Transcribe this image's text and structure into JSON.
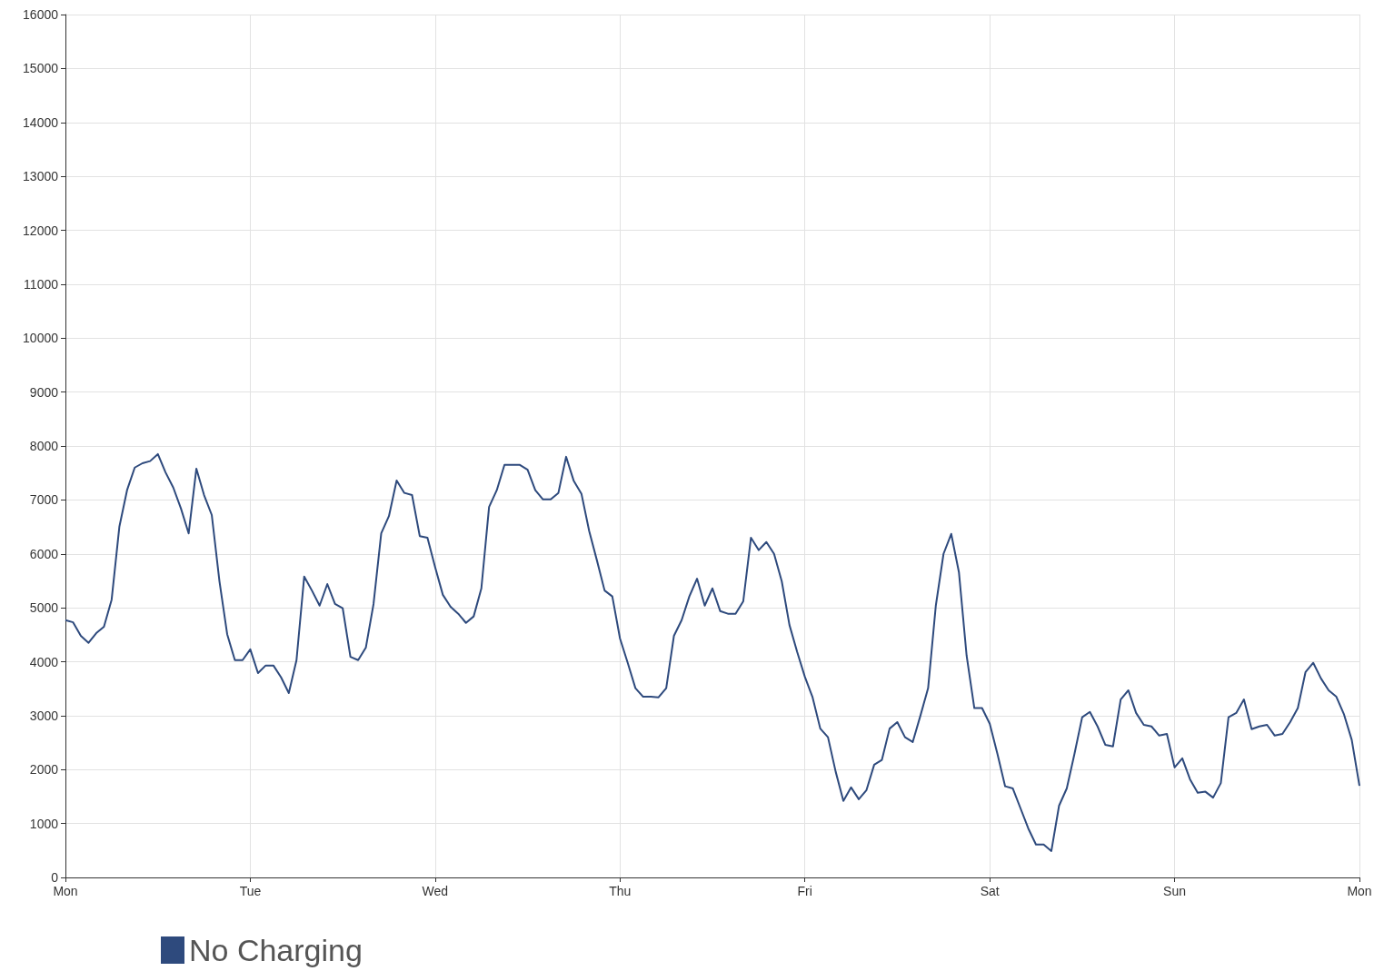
{
  "chart_data": {
    "type": "line",
    "categories": [
      "Mon",
      null,
      null,
      null,
      null,
      null,
      null,
      null,
      null,
      null,
      null,
      null,
      null,
      null,
      null,
      null,
      null,
      null,
      null,
      null,
      null,
      null,
      null,
      null,
      "Tue",
      null,
      null,
      null,
      null,
      null,
      null,
      null,
      null,
      null,
      null,
      null,
      null,
      null,
      null,
      null,
      null,
      null,
      null,
      null,
      null,
      null,
      null,
      null,
      "Wed",
      null,
      null,
      null,
      null,
      null,
      null,
      null,
      null,
      null,
      null,
      null,
      null,
      null,
      null,
      null,
      null,
      null,
      null,
      null,
      null,
      null,
      null,
      null,
      "Thu",
      null,
      null,
      null,
      null,
      null,
      null,
      null,
      null,
      null,
      null,
      null,
      null,
      null,
      null,
      null,
      null,
      null,
      null,
      null,
      null,
      null,
      null,
      null,
      "Fri",
      null,
      null,
      null,
      null,
      null,
      null,
      null,
      null,
      null,
      null,
      null,
      null,
      null,
      null,
      null,
      null,
      null,
      null,
      null,
      null,
      null,
      null,
      null,
      "Sat",
      null,
      null,
      null,
      null,
      null,
      null,
      null,
      null,
      null,
      null,
      null,
      null,
      null,
      null,
      null,
      null,
      null,
      null,
      null,
      null,
      null,
      null,
      null,
      "Sun",
      null,
      null,
      null,
      null,
      null,
      null,
      null,
      null,
      null,
      null,
      null,
      null,
      null,
      null,
      null,
      null,
      null,
      null,
      null,
      null,
      null,
      null,
      null,
      "Mon"
    ],
    "series": [
      {
        "name": "No Charging",
        "color": "#2e4a7d",
        "values": [
          4770,
          4730,
          4480,
          4350,
          4530,
          4650,
          5150,
          6500,
          7180,
          7600,
          7680,
          7720,
          7850,
          7510,
          7230,
          6840,
          6380,
          7580,
          7090,
          6720,
          5490,
          4510,
          4030,
          4030,
          4230,
          3790,
          3930,
          3930,
          3710,
          3420,
          4030,
          5580,
          5320,
          5040,
          5440,
          5070,
          4990,
          4090,
          4030,
          4260,
          5070,
          6380,
          6700,
          7360,
          7130,
          7090,
          6330,
          6300,
          5750,
          5240,
          5020,
          4890,
          4720,
          4840,
          5360,
          6870,
          7180,
          7650,
          7650,
          7650,
          7560,
          7180,
          7010,
          7010,
          7130,
          7800,
          7350,
          7110,
          6420,
          5880,
          5320,
          5210,
          4430,
          3980,
          3510,
          3350,
          3350,
          3340,
          3510,
          4480,
          4770,
          5210,
          5540,
          5040,
          5360,
          4940,
          4890,
          4890,
          5120,
          6300,
          6070,
          6220,
          6000,
          5490,
          4680,
          4180,
          3720,
          3340,
          2760,
          2600,
          1960,
          1420,
          1670,
          1450,
          1620,
          2090,
          2180,
          2760,
          2880,
          2600,
          2510,
          3000,
          3510,
          5040,
          6000,
          6370,
          5660,
          4110,
          3140,
          3140,
          2850,
          2290,
          1690,
          1650,
          1280,
          910,
          610,
          610,
          490,
          1330,
          1650,
          2290,
          2970,
          3070,
          2800,
          2460,
          2430,
          3300,
          3470,
          3050,
          2830,
          2800,
          2630,
          2660,
          2040,
          2210,
          1820,
          1570,
          1590,
          1480,
          1750,
          2970,
          3050,
          3300,
          2750,
          2800,
          2830,
          2630,
          2660,
          2880,
          3140,
          3810,
          3980,
          3690,
          3470,
          3350,
          3020,
          2550,
          1700
        ]
      }
    ],
    "ylim": [
      0,
      16000
    ],
    "yticks": [
      0,
      1000,
      2000,
      3000,
      4000,
      5000,
      6000,
      7000,
      8000,
      9000,
      10000,
      11000,
      12000,
      13000,
      14000,
      15000,
      16000
    ],
    "grid": true,
    "legend": "bottom left",
    "marker": "none",
    "line_style": "solid"
  }
}
